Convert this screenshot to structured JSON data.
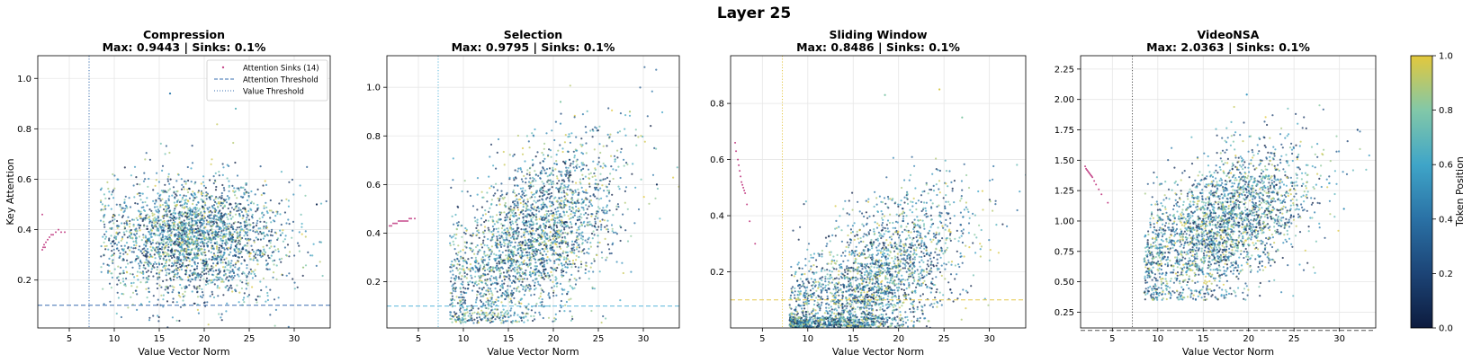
{
  "figure": {
    "suptitle": "Layer 25"
  },
  "colorbar": {
    "label": "Token Position",
    "ticks": [
      0.0,
      0.2,
      0.4,
      0.6,
      0.8,
      1.0
    ],
    "tick_labels": [
      "0.0",
      "0.2",
      "0.4",
      "0.6",
      "0.8",
      "1.0"
    ],
    "colormap": [
      "#0d1b3e",
      "#1c4476",
      "#2a71a5",
      "#3fa5c8",
      "#82c8a8",
      "#e3c83c"
    ]
  },
  "legend": {
    "entries": [
      {
        "label": "Attention Sinks (14)",
        "marker": "dot",
        "color": "#c64b8c"
      },
      {
        "label": "Attention Threshold",
        "marker": "dashed-line",
        "color": "#3a6fb0"
      },
      {
        "label": "Value Threshold",
        "marker": "dotted-line",
        "color": "#3a6fb0"
      }
    ]
  },
  "chart_data": [
    {
      "type": "scatter",
      "title": "Compression",
      "subtitle": "Max: 0.9443 | Sinks: 0.1%",
      "xlabel": "Value Vector Norm",
      "ylabel": "Key Attention",
      "xlim": [
        1.5,
        34
      ],
      "ylim": [
        0.01,
        1.09
      ],
      "xticks": [
        5,
        10,
        15,
        20,
        25,
        30
      ],
      "yticks": [
        0.2,
        0.4,
        0.6,
        0.8,
        1.0
      ],
      "ytick_labels": [
        "0.2",
        "0.4",
        "0.6",
        "0.8",
        "1.0"
      ],
      "grid": true,
      "legend_position": "top-right",
      "thresholds": {
        "attention": 0.1,
        "value": 7.2,
        "color": "#3a6fb0"
      },
      "cluster": {
        "x_mean": 19,
        "x_sd": 5,
        "y_mean": 0.36,
        "y_sd": 0.12,
        "slope": 0.0,
        "x_min": 8.5,
        "y_min": 0.0
      },
      "sinks": [
        [
          2.0,
          0.32
        ],
        [
          2.2,
          0.34
        ],
        [
          2.4,
          0.35
        ],
        [
          2.6,
          0.36
        ],
        [
          2.8,
          0.37
        ],
        [
          3.0,
          0.38
        ],
        [
          3.2,
          0.38
        ],
        [
          3.5,
          0.39
        ],
        [
          3.8,
          0.4
        ],
        [
          4.1,
          0.39
        ],
        [
          4.5,
          0.39
        ],
        [
          2.1,
          0.33
        ],
        [
          2.3,
          0.33
        ],
        [
          2.0,
          0.46
        ]
      ],
      "outliers": [
        [
          16.2,
          0.94
        ],
        [
          23.5,
          0.88
        ],
        [
          32.5,
          0.5
        ],
        [
          31.0,
          0.25
        ]
      ]
    },
    {
      "type": "scatter",
      "title": "Selection",
      "subtitle": "Max: 0.9795 | Sinks: 0.1%",
      "xlabel": "Value Vector Norm",
      "ylabel": "",
      "xlim": [
        1.5,
        34
      ],
      "ylim": [
        0.01,
        1.13
      ],
      "xticks": [
        5,
        10,
        15,
        20,
        25,
        30
      ],
      "yticks": [
        0.2,
        0.4,
        0.6,
        0.8,
        1.0
      ],
      "ytick_labels": [
        "0.2",
        "0.4",
        "0.6",
        "0.8",
        "1.0"
      ],
      "grid": true,
      "thresholds": {
        "attention": 0.1,
        "value": 7.2,
        "color": "#5bb8dc"
      },
      "cluster": {
        "x_mean": 17.5,
        "x_sd": 5.2,
        "y_mean": 0.37,
        "y_sd": 0.17,
        "slope": 0.022,
        "x_min": 8.5,
        "y_min": 0.03
      },
      "sinks": [
        [
          1.8,
          0.43
        ],
        [
          2.2,
          0.44
        ],
        [
          2.6,
          0.44
        ],
        [
          3.0,
          0.45
        ],
        [
          3.4,
          0.45
        ],
        [
          3.8,
          0.45
        ],
        [
          4.2,
          0.46
        ],
        [
          4.6,
          0.46
        ],
        [
          2.0,
          0.43
        ],
        [
          2.4,
          0.44
        ],
        [
          2.8,
          0.45
        ],
        [
          3.2,
          0.45
        ],
        [
          3.6,
          0.45
        ],
        [
          4.0,
          0.46
        ]
      ],
      "outliers": [
        [
          20.8,
          0.94
        ],
        [
          28.5,
          0.9
        ],
        [
          31.5,
          0.6
        ]
      ]
    },
    {
      "type": "scatter",
      "title": "Sliding Window",
      "subtitle": "Max: 0.8486 | Sinks: 0.1%",
      "xlabel": "Value Vector Norm",
      "ylabel": "",
      "xlim": [
        1.5,
        34
      ],
      "ylim": [
        0.0,
        0.97
      ],
      "xticks": [
        5,
        10,
        15,
        20,
        25,
        30
      ],
      "yticks": [
        0.2,
        0.4,
        0.6,
        0.8
      ],
      "ytick_labels": [
        "0.2",
        "0.4",
        "0.6",
        "0.8"
      ],
      "grid": true,
      "thresholds": {
        "attention": 0.1,
        "value": 7.2,
        "color": "#e6c84a"
      },
      "cluster": {
        "x_mean": 16.5,
        "x_sd": 5.5,
        "y_mean": 0.14,
        "y_sd": 0.13,
        "slope": 0.02,
        "x_min": 8.0,
        "y_min": 0.0
      },
      "sinks": [
        [
          2.0,
          0.66
        ],
        [
          2.3,
          0.6
        ],
        [
          2.5,
          0.56
        ],
        [
          2.7,
          0.52
        ],
        [
          2.9,
          0.5
        ],
        [
          3.1,
          0.48
        ],
        [
          3.3,
          0.44
        ],
        [
          3.6,
          0.38
        ],
        [
          4.2,
          0.3
        ],
        [
          2.1,
          0.63
        ],
        [
          2.4,
          0.58
        ],
        [
          2.6,
          0.54
        ],
        [
          2.8,
          0.51
        ],
        [
          3.0,
          0.49
        ]
      ],
      "outliers": [
        [
          24.5,
          0.85
        ],
        [
          18.5,
          0.83
        ],
        [
          27.0,
          0.75
        ]
      ]
    },
    {
      "type": "scatter",
      "title": "VideoNSA",
      "subtitle": "Max: 2.0363 | Sinks: 0.1%",
      "xlabel": "Value Vector Norm",
      "ylabel": "",
      "xlim": [
        1.5,
        34
      ],
      "ylim": [
        0.12,
        2.36
      ],
      "xticks": [
        5,
        10,
        15,
        20,
        25,
        30
      ],
      "yticks": [
        0.25,
        0.5,
        0.75,
        1.0,
        1.25,
        1.5,
        1.75,
        2.0,
        2.25
      ],
      "ytick_labels": [
        "0.25",
        "0.50",
        "0.75",
        "1.00",
        "1.25",
        "1.50",
        "1.75",
        "2.00",
        "2.25"
      ],
      "grid": true,
      "thresholds": {
        "attention": 0.1,
        "value": 7.2,
        "color": "#555555"
      },
      "cluster": {
        "x_mean": 17,
        "x_sd": 5,
        "y_mean": 0.95,
        "y_sd": 0.28,
        "slope": 0.035,
        "x_min": 8.5,
        "y_min": 0.35
      },
      "sinks": [
        [
          2.0,
          1.45
        ],
        [
          2.2,
          1.42
        ],
        [
          2.4,
          1.4
        ],
        [
          2.6,
          1.38
        ],
        [
          2.8,
          1.36
        ],
        [
          3.0,
          1.33
        ],
        [
          3.2,
          1.3
        ],
        [
          3.5,
          1.26
        ],
        [
          3.8,
          1.22
        ],
        [
          4.5,
          1.15
        ],
        [
          2.1,
          1.43
        ],
        [
          2.3,
          1.41
        ],
        [
          2.5,
          1.39
        ],
        [
          2.7,
          1.37
        ]
      ],
      "outliers": [
        [
          19.8,
          2.04
        ],
        [
          32.0,
          1.75
        ],
        [
          30.5,
          1.1
        ]
      ]
    }
  ]
}
